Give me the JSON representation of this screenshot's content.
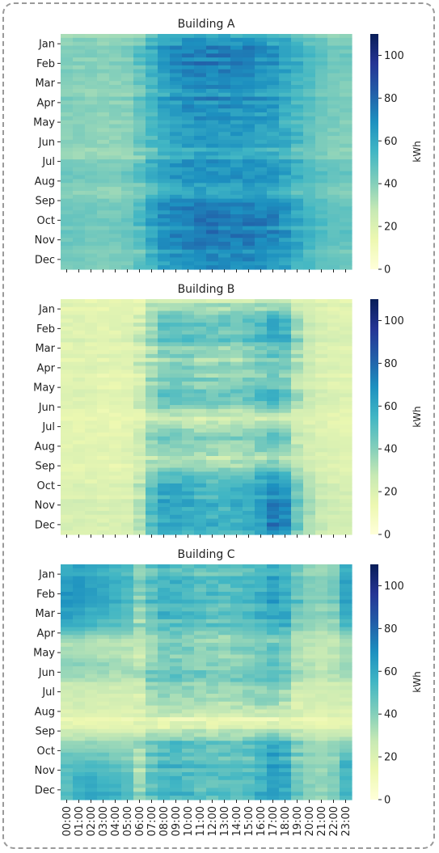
{
  "chart_data": [
    {
      "type": "heatmap",
      "title": "Building A",
      "colorbar_label": "kWh",
      "colorbar_ticks": [
        0,
        20,
        40,
        60,
        80,
        100
      ],
      "zlim": [
        0,
        110
      ],
      "colormap": "YlGnBu",
      "y_ticks": [
        "Jan",
        "Feb",
        "Mar",
        "Apr",
        "May",
        "Jun",
        "Jul",
        "Aug",
        "Sep",
        "Oct",
        "Nov",
        "Dec"
      ],
      "x_ticks": [],
      "hours": [
        "00:00",
        "01:00",
        "02:00",
        "03:00",
        "04:00",
        "05:00",
        "06:00",
        "07:00",
        "08:00",
        "09:00",
        "10:00",
        "11:00",
        "12:00",
        "13:00",
        "14:00",
        "15:00",
        "16:00",
        "17:00",
        "18:00",
        "19:00",
        "20:00",
        "21:00",
        "22:00",
        "23:00"
      ],
      "monthly_hourly_kwh": [
        [
          38,
          38,
          38,
          37,
          37,
          38,
          42,
          52,
          58,
          60,
          62,
          62,
          62,
          62,
          62,
          62,
          60,
          58,
          55,
          50,
          46,
          43,
          41,
          40
        ],
        [
          42,
          41,
          41,
          40,
          40,
          42,
          48,
          58,
          66,
          70,
          72,
          73,
          73,
          72,
          72,
          72,
          70,
          68,
          64,
          58,
          52,
          48,
          45,
          44
        ],
        [
          42,
          41,
          41,
          40,
          40,
          42,
          48,
          58,
          66,
          70,
          73,
          74,
          74,
          73,
          73,
          73,
          71,
          69,
          65,
          59,
          53,
          48,
          45,
          44
        ],
        [
          40,
          40,
          39,
          39,
          39,
          40,
          46,
          55,
          62,
          66,
          68,
          69,
          69,
          68,
          68,
          68,
          66,
          64,
          60,
          55,
          50,
          46,
          43,
          42
        ],
        [
          40,
          40,
          39,
          39,
          39,
          40,
          45,
          54,
          61,
          64,
          66,
          67,
          67,
          66,
          66,
          66,
          64,
          62,
          58,
          54,
          49,
          45,
          43,
          42
        ],
        [
          37,
          37,
          36,
          36,
          36,
          37,
          42,
          50,
          56,
          59,
          61,
          62,
          62,
          61,
          61,
          61,
          59,
          57,
          54,
          50,
          46,
          42,
          40,
          39
        ],
        [
          36,
          36,
          35,
          35,
          35,
          36,
          40,
          48,
          54,
          57,
          59,
          60,
          60,
          59,
          59,
          59,
          57,
          55,
          52,
          48,
          44,
          41,
          39,
          38
        ],
        [
          46,
          45,
          45,
          44,
          44,
          46,
          50,
          58,
          64,
          67,
          68,
          69,
          69,
          68,
          68,
          68,
          67,
          65,
          62,
          58,
          54,
          50,
          48,
          47
        ],
        [
          42,
          41,
          41,
          40,
          40,
          42,
          46,
          54,
          60,
          63,
          65,
          66,
          66,
          65,
          65,
          65,
          63,
          61,
          58,
          54,
          50,
          46,
          44,
          43
        ],
        [
          44,
          43,
          43,
          42,
          42,
          44,
          49,
          58,
          66,
          70,
          72,
          73,
          73,
          72,
          72,
          72,
          71,
          69,
          65,
          59,
          54,
          50,
          47,
          46
        ],
        [
          46,
          45,
          45,
          44,
          44,
          46,
          51,
          60,
          68,
          72,
          74,
          75,
          75,
          74,
          74,
          74,
          73,
          71,
          67,
          61,
          56,
          52,
          49,
          48
        ],
        [
          43,
          42,
          42,
          41,
          41,
          43,
          48,
          56,
          63,
          67,
          69,
          70,
          70,
          69,
          69,
          69,
          68,
          66,
          62,
          57,
          52,
          48,
          46,
          45
        ]
      ]
    },
    {
      "type": "heatmap",
      "title": "Building B",
      "colorbar_label": "kWh",
      "colorbar_ticks": [
        0,
        20,
        40,
        60,
        80,
        100
      ],
      "zlim": [
        0,
        110
      ],
      "colormap": "YlGnBu",
      "y_ticks": [
        "Jan",
        "Feb",
        "Mar",
        "Apr",
        "May",
        "Jun",
        "Jul",
        "Aug",
        "Sep",
        "Oct",
        "Nov",
        "Dec"
      ],
      "x_ticks": [],
      "hours": [
        "00:00",
        "01:00",
        "02:00",
        "03:00",
        "04:00",
        "05:00",
        "06:00",
        "07:00",
        "08:00",
        "09:00",
        "10:00",
        "11:00",
        "12:00",
        "13:00",
        "14:00",
        "15:00",
        "16:00",
        "17:00",
        "18:00",
        "19:00",
        "20:00",
        "21:00",
        "22:00",
        "23:00"
      ],
      "monthly_hourly_kwh": [
        [
          18,
          18,
          18,
          18,
          18,
          18,
          20,
          24,
          28,
          28,
          28,
          28,
          28,
          28,
          28,
          28,
          30,
          32,
          32,
          26,
          22,
          20,
          19,
          18
        ],
        [
          20,
          20,
          19,
          19,
          19,
          20,
          26,
          38,
          50,
          52,
          50,
          48,
          48,
          48,
          48,
          50,
          54,
          60,
          58,
          40,
          28,
          24,
          22,
          21
        ],
        [
          20,
          20,
          19,
          19,
          19,
          20,
          26,
          38,
          48,
          50,
          48,
          46,
          46,
          46,
          46,
          48,
          52,
          58,
          56,
          38,
          27,
          23,
          22,
          21
        ],
        [
          18,
          18,
          18,
          17,
          17,
          18,
          22,
          30,
          36,
          36,
          34,
          32,
          32,
          32,
          32,
          34,
          38,
          42,
          40,
          30,
          24,
          21,
          20,
          19
        ],
        [
          18,
          18,
          18,
          17,
          17,
          18,
          24,
          36,
          44,
          44,
          42,
          40,
          40,
          40,
          40,
          42,
          44,
          46,
          42,
          30,
          24,
          21,
          20,
          19
        ],
        [
          19,
          19,
          18,
          18,
          18,
          19,
          24,
          38,
          48,
          48,
          46,
          44,
          44,
          44,
          44,
          46,
          50,
          56,
          50,
          34,
          26,
          22,
          21,
          20
        ],
        [
          16,
          16,
          16,
          15,
          15,
          16,
          19,
          24,
          26,
          26,
          25,
          24,
          24,
          24,
          24,
          25,
          26,
          28,
          26,
          22,
          19,
          18,
          17,
          17
        ],
        [
          18,
          18,
          18,
          17,
          17,
          18,
          26,
          40,
          46,
          46,
          44,
          42,
          42,
          42,
          42,
          44,
          48,
          50,
          44,
          30,
          24,
          21,
          20,
          19
        ],
        [
          17,
          17,
          17,
          16,
          16,
          17,
          20,
          26,
          28,
          28,
          27,
          26,
          26,
          26,
          26,
          27,
          28,
          30,
          28,
          23,
          20,
          18,
          18,
          17
        ],
        [
          20,
          20,
          19,
          19,
          19,
          20,
          28,
          46,
          56,
          56,
          54,
          52,
          52,
          52,
          52,
          54,
          60,
          66,
          62,
          42,
          30,
          25,
          22,
          21
        ],
        [
          21,
          21,
          20,
          20,
          20,
          21,
          30,
          48,
          58,
          58,
          56,
          54,
          54,
          54,
          54,
          56,
          62,
          70,
          66,
          44,
          32,
          26,
          23,
          22
        ],
        [
          21,
          21,
          20,
          20,
          20,
          21,
          30,
          48,
          58,
          58,
          56,
          54,
          54,
          54,
          54,
          56,
          62,
          72,
          70,
          44,
          32,
          26,
          23,
          22
        ]
      ]
    },
    {
      "type": "heatmap",
      "title": "Building C",
      "colorbar_label": "kWh",
      "colorbar_ticks": [
        0,
        20,
        40,
        60,
        80,
        100
      ],
      "zlim": [
        0,
        110
      ],
      "colormap": "YlGnBu",
      "y_ticks": [
        "Jan",
        "Feb",
        "Mar",
        "Apr",
        "May",
        "Jun",
        "Jul",
        "Aug",
        "Sep",
        "Oct",
        "Nov",
        "Dec"
      ],
      "x_ticks": [
        "00:00",
        "01:00",
        "02:00",
        "03:00",
        "04:00",
        "05:00",
        "06:00",
        "07:00",
        "08:00",
        "09:00",
        "10:00",
        "11:00",
        "12:00",
        "13:00",
        "14:00",
        "15:00",
        "16:00",
        "17:00",
        "18:00",
        "19:00",
        "20:00",
        "21:00",
        "22:00",
        "23:00"
      ],
      "hours": [
        "00:00",
        "01:00",
        "02:00",
        "03:00",
        "04:00",
        "05:00",
        "06:00",
        "07:00",
        "08:00",
        "09:00",
        "10:00",
        "11:00",
        "12:00",
        "13:00",
        "14:00",
        "15:00",
        "16:00",
        "17:00",
        "18:00",
        "19:00",
        "20:00",
        "21:00",
        "22:00",
        "23:00"
      ],
      "monthly_hourly_kwh": [
        [
          58,
          60,
          58,
          56,
          54,
          52,
          38,
          46,
          50,
          50,
          48,
          46,
          46,
          46,
          46,
          48,
          52,
          56,
          54,
          44,
          38,
          36,
          38,
          56
        ],
        [
          66,
          66,
          64,
          62,
          58,
          54,
          40,
          50,
          56,
          56,
          54,
          52,
          52,
          52,
          52,
          54,
          58,
          62,
          60,
          48,
          42,
          40,
          44,
          62
        ],
        [
          66,
          64,
          62,
          60,
          56,
          52,
          38,
          48,
          54,
          54,
          52,
          50,
          50,
          50,
          50,
          52,
          56,
          60,
          58,
          46,
          40,
          38,
          42,
          60
        ],
        [
          58,
          56,
          54,
          52,
          50,
          48,
          36,
          44,
          50,
          50,
          48,
          46,
          46,
          46,
          46,
          48,
          52,
          56,
          54,
          44,
          38,
          36,
          38,
          54
        ],
        [
          30,
          30,
          29,
          28,
          28,
          28,
          26,
          34,
          40,
          40,
          38,
          36,
          36,
          36,
          36,
          38,
          40,
          42,
          40,
          32,
          28,
          27,
          28,
          30
        ],
        [
          40,
          40,
          38,
          38,
          36,
          36,
          30,
          40,
          46,
          46,
          44,
          42,
          42,
          42,
          42,
          44,
          48,
          52,
          48,
          36,
          32,
          30,
          32,
          40
        ],
        [
          28,
          28,
          27,
          27,
          26,
          26,
          26,
          40,
          44,
          44,
          42,
          40,
          40,
          40,
          40,
          42,
          44,
          44,
          40,
          30,
          27,
          26,
          26,
          28
        ],
        [
          26,
          26,
          25,
          25,
          25,
          25,
          26,
          36,
          40,
          40,
          38,
          36,
          36,
          36,
          36,
          38,
          40,
          40,
          36,
          28,
          26,
          25,
          25,
          26
        ],
        [
          14,
          14,
          14,
          14,
          14,
          14,
          14,
          14,
          14,
          14,
          14,
          14,
          14,
          14,
          14,
          14,
          14,
          14,
          14,
          14,
          14,
          14,
          14,
          14
        ],
        [
          36,
          36,
          35,
          34,
          34,
          34,
          32,
          42,
          48,
          48,
          46,
          44,
          44,
          44,
          44,
          46,
          50,
          54,
          50,
          38,
          34,
          32,
          34,
          36
        ],
        [
          48,
          50,
          50,
          48,
          46,
          44,
          34,
          46,
          52,
          52,
          50,
          48,
          48,
          48,
          48,
          50,
          56,
          62,
          58,
          44,
          38,
          36,
          40,
          56
        ],
        [
          50,
          58,
          60,
          58,
          56,
          52,
          36,
          48,
          54,
          54,
          52,
          50,
          50,
          50,
          50,
          52,
          58,
          64,
          62,
          46,
          40,
          38,
          42,
          54
        ]
      ]
    }
  ]
}
